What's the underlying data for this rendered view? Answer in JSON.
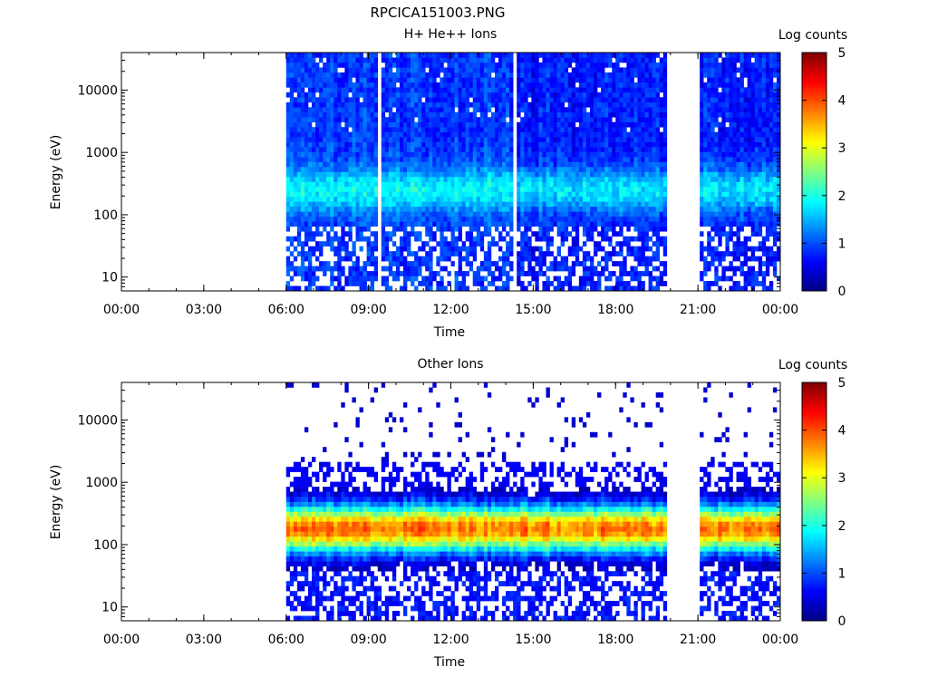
{
  "figure": {
    "title": "RPCICA151003.PNG"
  },
  "chart_data": [
    {
      "type": "heatmap",
      "title": "H+ He++ Ions",
      "xlabel": "Time",
      "ylabel": "Energy (eV)",
      "x_ticks": [
        "00:00",
        "03:00",
        "06:00",
        "09:00",
        "12:00",
        "15:00",
        "18:00",
        "21:00",
        "00:00"
      ],
      "xlim_hours": [
        0,
        24
      ],
      "y_scale": "log",
      "ylim": [
        6,
        40000
      ],
      "y_ticks": [
        10,
        100,
        1000,
        10000
      ],
      "y_tick_labels": [
        "10",
        "100",
        "1000",
        "10000"
      ],
      "colorbar": {
        "label": "Log counts",
        "range": [
          0,
          5
        ],
        "ticks": [
          "0",
          "1",
          "2",
          "3",
          "4",
          "5"
        ]
      },
      "data_gaps_hours": [
        [
          0,
          6.0
        ],
        [
          9.35,
          9.5
        ],
        [
          10.75,
          10.85
        ],
        [
          14.3,
          14.4
        ],
        [
          19.9,
          21.1
        ],
        [
          23.95,
          24
        ]
      ],
      "profile": {
        "kind": "proton",
        "peak_energy_eV": 250,
        "peak_log_counts": 1.9,
        "background_log_counts": 0.9
      }
    },
    {
      "type": "heatmap",
      "title": "Other Ions",
      "xlabel": "Time",
      "ylabel": "Energy (eV)",
      "x_ticks": [
        "00:00",
        "03:00",
        "06:00",
        "09:00",
        "12:00",
        "15:00",
        "18:00",
        "21:00",
        "00:00"
      ],
      "xlim_hours": [
        0,
        24
      ],
      "y_scale": "log",
      "ylim": [
        6,
        40000
      ],
      "y_ticks": [
        10,
        100,
        1000,
        10000
      ],
      "y_tick_labels": [
        "10",
        "100",
        "1000",
        "10000"
      ],
      "colorbar": {
        "label": "Log counts",
        "range": [
          0,
          5
        ],
        "ticks": [
          "0",
          "1",
          "2",
          "3",
          "4",
          "5"
        ]
      },
      "data_gaps_hours": [
        [
          0,
          6.0
        ],
        [
          19.9,
          21.1
        ],
        [
          23.95,
          24
        ]
      ],
      "profile": {
        "kind": "heavy",
        "peak_energy_eV": 180,
        "peak_log_counts": 3.8,
        "band_low_eV": 40,
        "band_high_eV": 900
      }
    }
  ]
}
